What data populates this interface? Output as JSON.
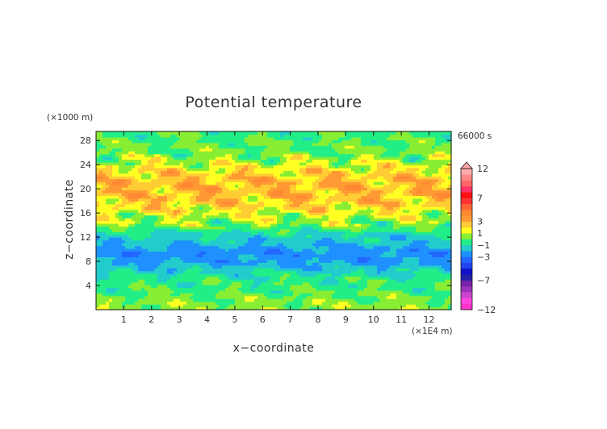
{
  "chart_data": {
    "type": "heatmap",
    "title": "Potential temperature",
    "xlabel": "x−coordinate",
    "ylabel": "z−coordinate",
    "x_unit": "(×1E4 m)",
    "y_unit": "(×1000 m)",
    "time_label": "66000 s",
    "xlim": [
      0,
      12.8
    ],
    "ylim": [
      0,
      29.5
    ],
    "x_ticks": [
      1,
      2,
      3,
      4,
      5,
      6,
      7,
      8,
      9,
      10,
      11,
      12
    ],
    "y_ticks": [
      4,
      8,
      12,
      16,
      20,
      24,
      28
    ],
    "colorbar": {
      "levels": [
        -12,
        -11,
        -10,
        -9,
        -8,
        -7,
        -6,
        -5,
        -4,
        -3,
        -2,
        -1,
        0,
        1,
        2,
        3,
        4,
        5,
        6,
        7,
        8,
        9,
        10,
        11,
        12
      ],
      "colors": [
        "#ff33cc",
        "#ff44dd",
        "#cc44cc",
        "#9933bb",
        "#7722aa",
        "#2222aa",
        "#1111cc",
        "#2244ee",
        "#2266ff",
        "#1e90ff",
        "#22cccc",
        "#22ee88",
        "#88ee33",
        "#ffff22",
        "#ffcc33",
        "#ff9933",
        "#ff8833",
        "#ff6633",
        "#ff3333",
        "#ff1111",
        "#ff3366",
        "#ff6666",
        "#ff8888",
        "#ffaaaa"
      ],
      "labels": [
        "12",
        "7",
        "3",
        "1",
        "−1",
        "−3",
        "−7",
        "−12"
      ],
      "label_values": [
        12,
        7,
        3,
        1,
        -1,
        -3,
        -7,
        -12
      ]
    },
    "vertical_profile": [
      {
        "z": 0.5,
        "value": 0.5
      },
      {
        "z": 2,
        "value": 0.2
      },
      {
        "z": 3.5,
        "value": -0.3
      },
      {
        "z": 5,
        "value": -0.5
      },
      {
        "z": 6.5,
        "value": -1.3
      },
      {
        "z": 8,
        "value": -2.3
      },
      {
        "z": 9.5,
        "value": -2.6
      },
      {
        "z": 11,
        "value": -1.8
      },
      {
        "z": 12.5,
        "value": -1.2
      },
      {
        "z": 14,
        "value": 0.3
      },
      {
        "z": 15.5,
        "value": 1.0
      },
      {
        "z": 17,
        "value": 2.0
      },
      {
        "z": 18.5,
        "value": 2.6
      },
      {
        "z": 20,
        "value": 2.8
      },
      {
        "z": 21.5,
        "value": 2.7
      },
      {
        "z": 23,
        "value": 2.0
      },
      {
        "z": 24.5,
        "value": 0.9
      },
      {
        "z": 26,
        "value": 0.2
      },
      {
        "z": 27.5,
        "value": 0.0
      },
      {
        "z": 29.5,
        "value": -0.3
      }
    ]
  }
}
